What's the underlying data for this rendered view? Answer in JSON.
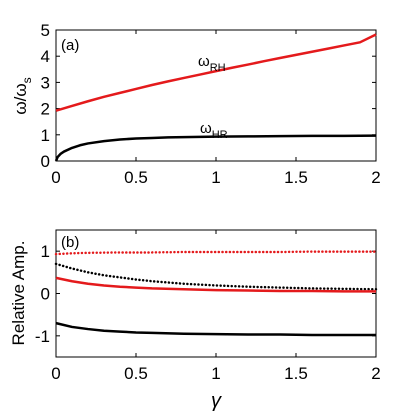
{
  "chart_data": [
    {
      "type": "line",
      "panel_label": "(a)",
      "xlim": [
        0,
        2
      ],
      "ylim": [
        0,
        5
      ],
      "xticks": [
        "0",
        "0.5",
        "1",
        "1.5",
        "2"
      ],
      "yticks": [
        "0",
        "1",
        "2",
        "3",
        "4",
        "5"
      ],
      "ylabel": "ω/ω_s",
      "ylabel_main": "ω/ω",
      "ylabel_sub": "s",
      "grid": false,
      "series": [
        {
          "name": "ω_RH",
          "label_main": "ω",
          "label_sub": "RH",
          "color": "#e41a1c",
          "style": "solid",
          "x": [
            0,
            0.1,
            0.2,
            0.3,
            0.4,
            0.5,
            0.6,
            0.7,
            0.8,
            0.9,
            1.0,
            1.1,
            1.2,
            1.3,
            1.4,
            1.5,
            1.6,
            1.7,
            1.8,
            1.9,
            2.0
          ],
          "y": [
            1.92,
            2.1,
            2.28,
            2.45,
            2.6,
            2.75,
            2.9,
            3.04,
            3.17,
            3.3,
            3.43,
            3.56,
            3.68,
            3.81,
            3.93,
            4.05,
            4.17,
            4.29,
            4.41,
            4.53,
            4.83
          ]
        },
        {
          "name": "ω_HR",
          "label_main": "ω",
          "label_sub": "HR",
          "color": "#000000",
          "style": "solid",
          "x": [
            0,
            0.01,
            0.03,
            0.05,
            0.1,
            0.15,
            0.2,
            0.3,
            0.4,
            0.5,
            0.6,
            0.7,
            0.8,
            1.0,
            1.2,
            1.4,
            1.6,
            1.8,
            2.0
          ],
          "y": [
            0.0,
            0.15,
            0.28,
            0.36,
            0.5,
            0.6,
            0.67,
            0.76,
            0.82,
            0.86,
            0.88,
            0.9,
            0.91,
            0.93,
            0.94,
            0.95,
            0.96,
            0.96,
            0.97
          ]
        }
      ]
    },
    {
      "type": "line",
      "panel_label": "(b)",
      "xlim": [
        0,
        2
      ],
      "ylim": [
        -1.5,
        1.5
      ],
      "xticks": [
        "0",
        "0.5",
        "1",
        "1.5",
        "2"
      ],
      "yticks": [
        "-1",
        "0",
        "1"
      ],
      "ylabel": "Relative Amp.",
      "xlabel": "γ",
      "grid": false,
      "series": [
        {
          "color": "#e41a1c",
          "style": "dotted",
          "x": [
            0,
            0.1,
            0.2,
            0.4,
            0.6,
            0.8,
            1.0,
            1.2,
            1.4,
            1.6,
            1.8,
            2.0
          ],
          "y": [
            0.93,
            0.95,
            0.96,
            0.97,
            0.97,
            0.98,
            0.98,
            0.98,
            0.98,
            0.99,
            0.99,
            0.99
          ]
        },
        {
          "color": "#000000",
          "style": "dotted",
          "x": [
            0,
            0.1,
            0.2,
            0.3,
            0.4,
            0.5,
            0.6,
            0.7,
            0.8,
            1.0,
            1.2,
            1.4,
            1.6,
            1.8,
            2.0
          ],
          "y": [
            0.7,
            0.59,
            0.5,
            0.43,
            0.38,
            0.33,
            0.29,
            0.26,
            0.23,
            0.19,
            0.16,
            0.14,
            0.12,
            0.11,
            0.1
          ]
        },
        {
          "color": "#e41a1c",
          "style": "solid",
          "x": [
            0,
            0.1,
            0.2,
            0.3,
            0.4,
            0.5,
            0.6,
            0.8,
            1.0,
            1.2,
            1.4,
            1.6,
            1.8,
            2.0
          ],
          "y": [
            0.37,
            0.29,
            0.23,
            0.19,
            0.16,
            0.14,
            0.12,
            0.1,
            0.08,
            0.07,
            0.06,
            0.06,
            0.05,
            0.05
          ]
        },
        {
          "color": "#000000",
          "style": "solid",
          "x": [
            0,
            0.1,
            0.2,
            0.3,
            0.4,
            0.5,
            0.6,
            0.8,
            1.0,
            1.2,
            1.4,
            1.6,
            1.8,
            2.0
          ],
          "y": [
            -0.7,
            -0.79,
            -0.84,
            -0.88,
            -0.9,
            -0.92,
            -0.93,
            -0.95,
            -0.96,
            -0.97,
            -0.97,
            -0.98,
            -0.98,
            -0.98
          ]
        }
      ]
    }
  ]
}
